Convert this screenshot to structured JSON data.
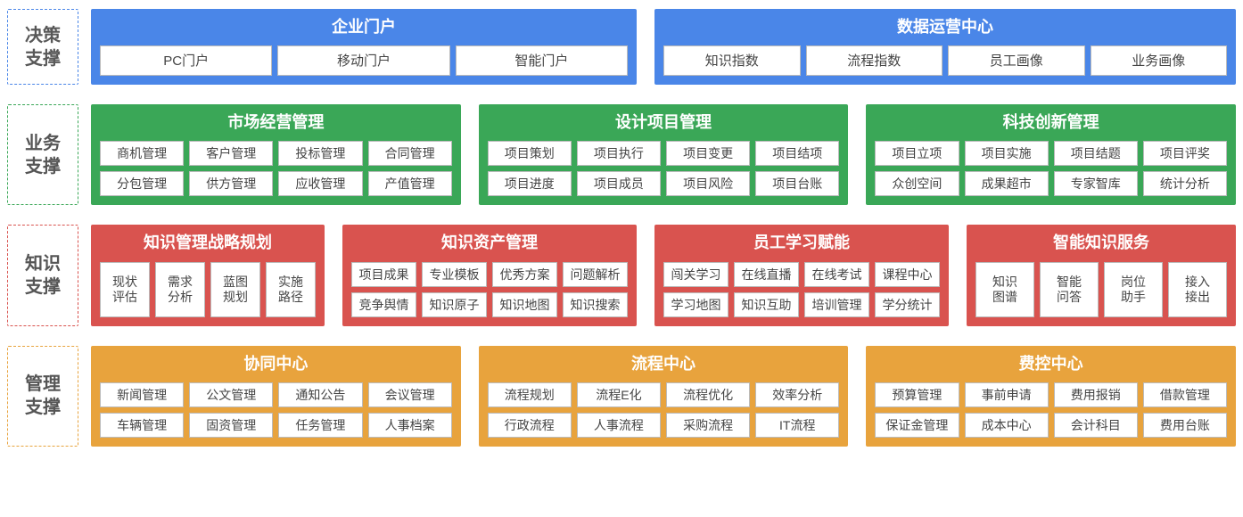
{
  "colors": {
    "row1": "#4a86e8",
    "row2": "#3aa757",
    "row3": "#d9534f",
    "row4": "#e8a33d",
    "cell_bg": "#ffffff",
    "cell_border": "#bbbbbb",
    "text": "#444444"
  },
  "rows": [
    {
      "label": "决策\n支撑",
      "panels": [
        {
          "title": "企业门户",
          "cells": [
            "PC门户",
            "移动门户",
            "智能门户"
          ]
        },
        {
          "title": "数据运营中心",
          "cells": [
            "知识指数",
            "流程指数",
            "员工画像",
            "业务画像"
          ]
        }
      ]
    },
    {
      "label": "业务\n支撑",
      "panels": [
        {
          "title": "市场经营管理",
          "cells": [
            "商机管理",
            "客户管理",
            "投标管理",
            "合同管理",
            "分包管理",
            "供方管理",
            "应收管理",
            "产值管理"
          ]
        },
        {
          "title": "设计项目管理",
          "cells": [
            "项目策划",
            "项目执行",
            "项目变更",
            "项目结项",
            "项目进度",
            "项目成员",
            "项目风险",
            "项目台账"
          ]
        },
        {
          "title": "科技创新管理",
          "cells": [
            "项目立项",
            "项目实施",
            "项目结题",
            "项目评奖",
            "众创空间",
            "成果超市",
            "专家智库",
            "统计分析"
          ]
        }
      ]
    },
    {
      "label": "知识\n支撑",
      "panels": [
        {
          "title": "知识管理战略规划",
          "cells": [
            "现状\n评估",
            "需求\n分析",
            "蓝图\n规划",
            "实施\n路径"
          ]
        },
        {
          "title": "知识资产管理",
          "cells": [
            "项目成果",
            "专业模板",
            "优秀方案",
            "问题解析",
            "竞争舆情",
            "知识原子",
            "知识地图",
            "知识搜索"
          ]
        },
        {
          "title": "员工学习赋能",
          "cells": [
            "闯关学习",
            "在线直播",
            "在线考试",
            "课程中心",
            "学习地图",
            "知识互助",
            "培训管理",
            "学分统计"
          ]
        },
        {
          "title": "智能知识服务",
          "cells": [
            "知识\n图谱",
            "智能\n问答",
            "岗位\n助手",
            "接入\n接出"
          ]
        }
      ]
    },
    {
      "label": "管理\n支撑",
      "panels": [
        {
          "title": "协同中心",
          "cells": [
            "新闻管理",
            "公文管理",
            "通知公告",
            "会议管理",
            "车辆管理",
            "固资管理",
            "任务管理",
            "人事档案"
          ]
        },
        {
          "title": "流程中心",
          "cells": [
            "流程规划",
            "流程E化",
            "流程优化",
            "效率分析",
            "行政流程",
            "人事流程",
            "采购流程",
            "IT流程"
          ]
        },
        {
          "title": "费控中心",
          "cells": [
            "预算管理",
            "事前申请",
            "费用报销",
            "借款管理",
            "保证金管理",
            "成本中心",
            "会计科目",
            "费用台账"
          ]
        }
      ]
    }
  ]
}
